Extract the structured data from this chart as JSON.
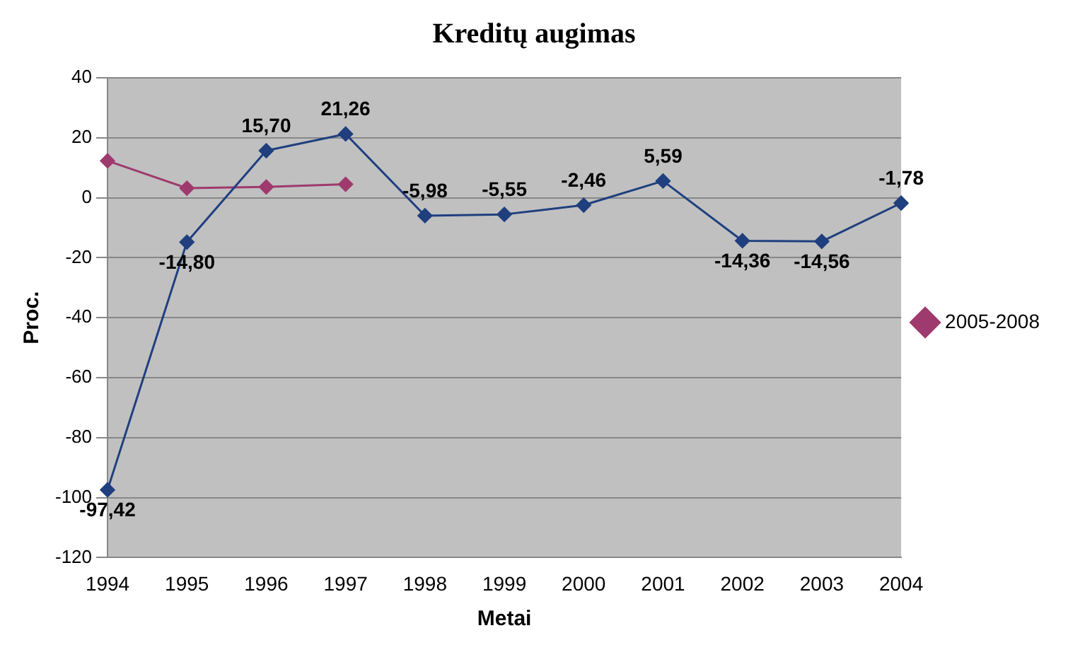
{
  "chart_data": {
    "type": "line",
    "title": "Kreditų augimas",
    "xlabel": "Metai",
    "ylabel": "Proc.",
    "categories": [
      "1994",
      "1995",
      "1996",
      "1997",
      "1998",
      "1999",
      "2000",
      "2001",
      "2002",
      "2003",
      "2004"
    ],
    "series": [
      {
        "color": "#1f3f7f",
        "values": [
          -97.42,
          -14.8,
          15.7,
          21.26,
          -5.98,
          -5.55,
          -2.46,
          5.59,
          -14.36,
          -14.56,
          -1.78
        ],
        "value_labels": [
          "-97,42",
          "-14,80",
          "15,70",
          "21,26",
          "-5,98",
          "-5,55",
          "-2,46",
          "5,59",
          "-14,36",
          "-14,56",
          "-1,78"
        ]
      },
      {
        "name": "2005-2008",
        "color": "#9e3a6e",
        "values": [
          12.3,
          3.2,
          3.6,
          4.5,
          null,
          null,
          null,
          null,
          null,
          null,
          null
        ]
      }
    ],
    "ylim": [
      -120,
      40
    ],
    "yticks": [
      -120,
      -100,
      -80,
      -60,
      -40,
      -20,
      0,
      20,
      40
    ],
    "grid": "y",
    "legend": "right",
    "marker": "diamond"
  }
}
